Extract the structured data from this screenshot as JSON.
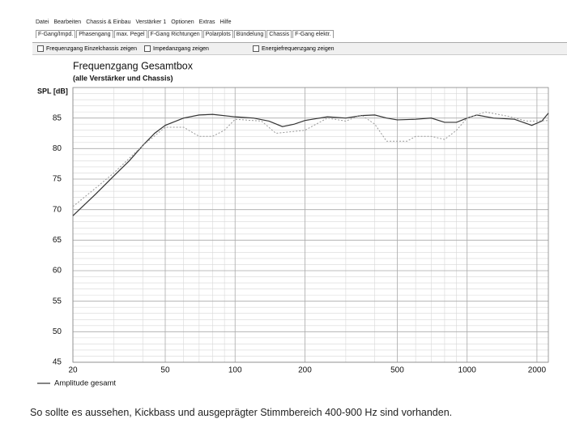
{
  "menu": [
    "Datei",
    "Bearbeiten",
    "Chassis & Einbau",
    "Verstärker 1",
    "Optionen",
    "Extras",
    "Hilfe"
  ],
  "tabs": [
    "F-Gang/Impd.",
    "Phasengang",
    "max. Pegel",
    "F-Gang Richtungen",
    "Polarplots",
    "Bündelung",
    "Chassis",
    "F-Gang elektr."
  ],
  "checkboxes": [
    "Frequenzgang Einzelchassis zeigen",
    "Impedanzgang zeigen",
    "Energiefrequenzgang zeigen"
  ],
  "chart_data": {
    "type": "line",
    "title": "Frequenzgang Gesamtbox",
    "subtitle": "(alle Verstärker und Chassis)",
    "y_label": "SPL [dB]",
    "x_log": true,
    "xlim": [
      20,
      2240
    ],
    "ylim": [
      45,
      90
    ],
    "xticks": [
      20,
      50,
      100,
      200,
      500,
      1000,
      2000
    ],
    "yticks": [
      45,
      50,
      55,
      60,
      65,
      70,
      75,
      80,
      85
    ],
    "x_minor_ticks": [
      30,
      40,
      60,
      70,
      80,
      90,
      300,
      400,
      600,
      700,
      800,
      900
    ],
    "y_minor_ticks": [
      46,
      47,
      48,
      49,
      51,
      52,
      53,
      54,
      56,
      57,
      58,
      59,
      61,
      62,
      63,
      64,
      66,
      67,
      68,
      69,
      71,
      72,
      73,
      74,
      76,
      77,
      78,
      79,
      81,
      82,
      83,
      84,
      86,
      87,
      88,
      89,
      90
    ],
    "grid": true,
    "series": [
      {
        "name": "Amplitude gesamt",
        "color": "#333333",
        "dash": false,
        "x": [
          20,
          25,
          30,
          35,
          40,
          45,
          50,
          60,
          70,
          80,
          100,
          120,
          140,
          160,
          180,
          200,
          250,
          300,
          350,
          400,
          450,
          500,
          600,
          700,
          800,
          900,
          1000,
          1100,
          1300,
          1600,
          1900,
          2100,
          2240
        ],
        "values": [
          69,
          72.5,
          75.5,
          78,
          80.5,
          82.5,
          83.8,
          85,
          85.5,
          85.6,
          85.2,
          85,
          84.5,
          83.6,
          84,
          84.6,
          85.2,
          85,
          85.4,
          85.5,
          85,
          84.7,
          84.8,
          85,
          84.3,
          84.3,
          85,
          85.5,
          85,
          84.8,
          83.8,
          84.5,
          85.8
        ]
      },
      {
        "color": "#999999",
        "dash": true,
        "x": [
          20,
          25,
          30,
          40,
          50,
          60,
          70,
          80,
          90,
          100,
          130,
          150,
          200,
          250,
          300,
          350,
          400,
          450,
          550,
          600,
          700,
          800,
          900,
          1000,
          1200,
          1500,
          1800,
          2000,
          2240
        ],
        "values": [
          70.5,
          73.5,
          76,
          80.5,
          83.5,
          83.5,
          82,
          82,
          83,
          84.8,
          84.5,
          82.5,
          83,
          85,
          84.5,
          85.5,
          84,
          81.2,
          81.2,
          82,
          82,
          81.5,
          83,
          85,
          86,
          85.3,
          84.5,
          84.5,
          84.6
        ]
      }
    ]
  },
  "caption": "So sollte es aussehen, Kickbass und ausgeprägter Stimmbereich 400-900 Hz sind vorhanden."
}
